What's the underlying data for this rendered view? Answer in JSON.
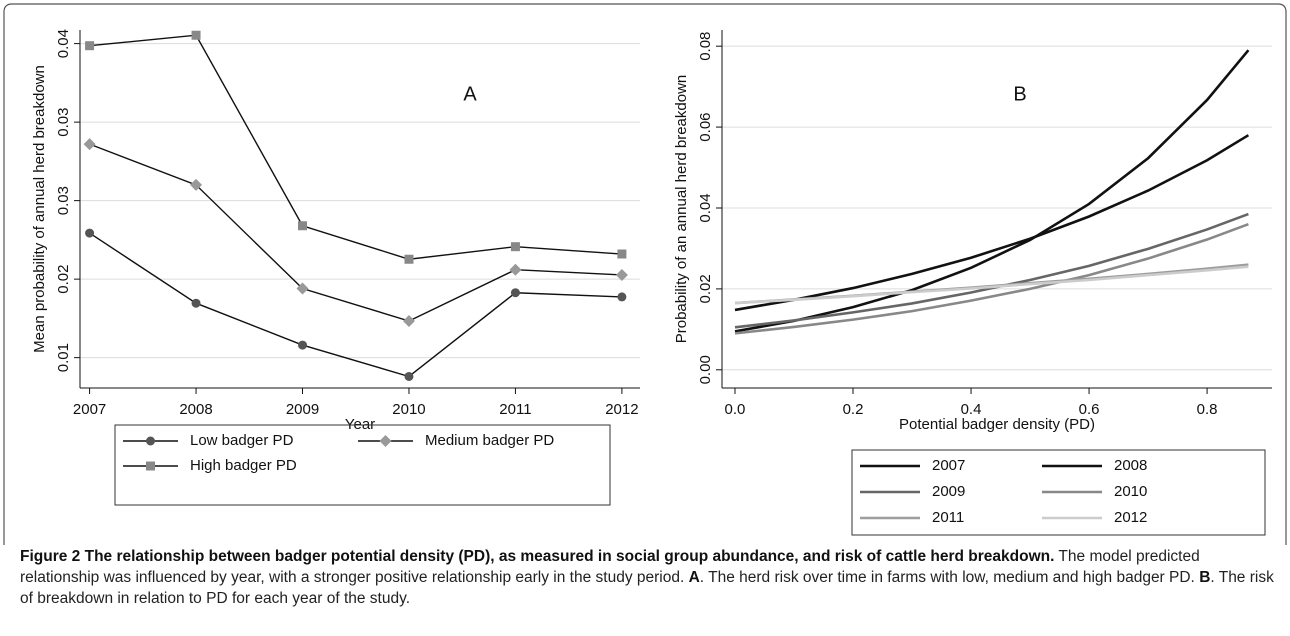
{
  "chart_data": [
    {
      "type": "line",
      "annotation": "A",
      "ylabel": "Mean probability of annual herd breakdown",
      "xlabel": "Year",
      "x": [
        2007,
        2008,
        2009,
        2010,
        2011,
        2012
      ],
      "xlim": [
        2006.91,
        2012.17
      ],
      "xticks": [
        2007,
        2008,
        2009,
        2010,
        2011,
        2012
      ],
      "ylim": [
        0.0071,
        0.0413
      ],
      "yticks": [
        0.01,
        {
          "value": 0.0175,
          "label": "0.02"
        },
        {
          "value": 0.025,
          "label": "0.03"
        },
        {
          "value": 0.0325,
          "label": "0.03"
        },
        0.04
      ],
      "grid": true,
      "line_color": "#111111",
      "series": [
        {
          "name": "Low badger PD",
          "color": "#555555",
          "marker": "circle",
          "values": [
            0.0219,
            0.0152,
            0.0112,
            0.0082,
            0.0162,
            0.0158
          ]
        },
        {
          "name": "Medium badger PD",
          "color": "#999999",
          "marker": "diamond",
          "values": [
            0.0304,
            0.0265,
            0.0166,
            0.0135,
            0.0184,
            0.0179
          ]
        },
        {
          "name": "High badger PD",
          "color": "#888888",
          "marker": "square",
          "values": [
            0.0398,
            0.0408,
            0.0226,
            0.0194,
            0.0206,
            0.0199
          ]
        }
      ]
    },
    {
      "type": "line",
      "annotation": "B",
      "ylabel": "Probability of an annual herd breakdown",
      "xlabel": "Potential badger density (PD)",
      "x": [
        0,
        0.1,
        0.2,
        0.3,
        0.4,
        0.5,
        0.6,
        0.7,
        0.8,
        0.87
      ],
      "xlim": [
        -0.022,
        0.91
      ],
      "xticks": [
        {
          "value": 0,
          "label": "0.0"
        },
        0.2,
        0.4,
        0.6,
        0.8
      ],
      "ylim": [
        -0.0045,
        0.084
      ],
      "yticks": [
        {
          "value": 0,
          "label": "0.00"
        },
        0.02,
        0.04,
        0.06,
        0.08
      ],
      "grid": true,
      "series": [
        {
          "name": "2007",
          "color": "#111111",
          "values": [
            0.0095,
            0.0121,
            0.0155,
            0.0197,
            0.0252,
            0.0321,
            0.041,
            0.0523,
            0.0667,
            0.079
          ]
        },
        {
          "name": "2008",
          "color": "#111111",
          "values": [
            0.0148,
            0.0173,
            0.0202,
            0.0237,
            0.0277,
            0.0324,
            0.0379,
            0.0443,
            0.0518,
            0.058
          ]
        },
        {
          "name": "2009",
          "color": "#666666",
          "values": [
            0.0105,
            0.0122,
            0.0142,
            0.0164,
            0.0191,
            0.0222,
            0.0257,
            0.0299,
            0.0347,
            0.0385
          ]
        },
        {
          "name": "2010",
          "color": "#888888",
          "values": [
            0.009,
            0.0106,
            0.0124,
            0.0145,
            0.0171,
            0.02,
            0.0234,
            0.0275,
            0.0322,
            0.036
          ]
        },
        {
          "name": "2011",
          "color": "#9d9d9d",
          "values": [
            0.0165,
            0.0174,
            0.0183,
            0.0193,
            0.0203,
            0.0214,
            0.0225,
            0.0237,
            0.025,
            0.026
          ]
        },
        {
          "name": "2012",
          "color": "#cccccc",
          "values": [
            0.0165,
            0.0173,
            0.0182,
            0.0192,
            0.0201,
            0.0212,
            0.0222,
            0.0234,
            0.0246,
            0.0255
          ]
        }
      ]
    }
  ],
  "caption": {
    "title": "Figure 2 The relationship between badger potential density (PD), as measured in social group abundance, and risk of cattle herd breakdown.",
    "text_1": " The model predicted relationship was influenced by year, with a stronger positive relationship early in the study period. ",
    "label_a": "A",
    "text_2": ". The herd risk over time in farms with low, medium and high badger PD. ",
    "label_b": "B",
    "text_3": ". The risk of breakdown in relation to PD for each year of the study."
  }
}
